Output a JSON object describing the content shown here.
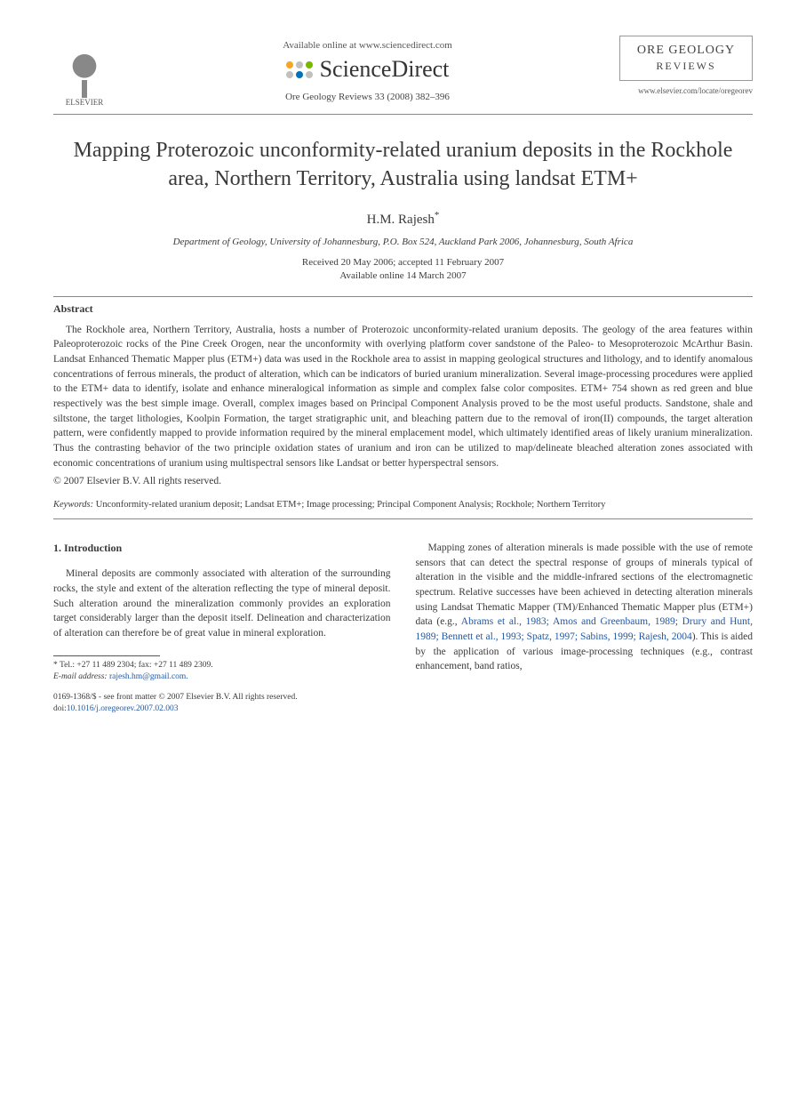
{
  "header": {
    "publisher_name": "ELSEVIER",
    "available_online": "Available online at www.sciencedirect.com",
    "sd_brand": "ScienceDirect",
    "sd_dot_colors": [
      "#f5a623",
      "#c0c0c0",
      "#7ab800",
      "#c0c0c0",
      "#0072bc",
      "#c0c0c0"
    ],
    "journal_ref": "Ore Geology Reviews 33 (2008) 382–396",
    "journal_box_line1": "ORE GEOLOGY",
    "journal_box_line2": "REVIEWS",
    "journal_url": "www.elsevier.com/locate/oregeorev"
  },
  "article": {
    "title": "Mapping Proterozoic unconformity-related uranium deposits in the Rockhole area, Northern Territory, Australia using landsat ETM+",
    "author": "H.M. Rajesh",
    "author_marker": "*",
    "affiliation": "Department of Geology, University of Johannesburg, P.O. Box 524, Auckland Park 2006, Johannesburg, South Africa",
    "dates_line1": "Received 20 May 2006; accepted 11 February 2007",
    "dates_line2": "Available online 14 March 2007"
  },
  "abstract": {
    "heading": "Abstract",
    "body": "The Rockhole area, Northern Territory, Australia, hosts a number of Proterozoic unconformity-related uranium deposits. The geology of the area features within Paleoproterozoic rocks of the Pine Creek Orogen, near the unconformity with overlying platform cover sandstone of the Paleo- to Mesoproterozoic McArthur Basin. Landsat Enhanced Thematic Mapper plus (ETM+) data was used in the Rockhole area to assist in mapping geological structures and lithology, and to identify anomalous concentrations of ferrous minerals, the product of alteration, which can be indicators of buried uranium mineralization. Several image-processing procedures were applied to the ETM+ data to identify, isolate and enhance mineralogical information as simple and complex false color composites. ETM+ 754 shown as red green and blue respectively was the best simple image. Overall, complex images based on Principal Component Analysis proved to be the most useful products. Sandstone, shale and siltstone, the target lithologies, Koolpin Formation, the target stratigraphic unit, and bleaching pattern due to the removal of iron(II) compounds, the target alteration pattern, were confidently mapped to provide information required by the mineral emplacement model, which ultimately identified areas of likely uranium mineralization. Thus the contrasting behavior of the two principle oxidation states of uranium and iron can be utilized to map/delineate bleached alteration zones associated with economic concentrations of uranium using multispectral sensors like Landsat or better hyperspectral sensors.",
    "copyright": "© 2007 Elsevier B.V. All rights reserved."
  },
  "keywords": {
    "label": "Keywords:",
    "list": "Unconformity-related uranium deposit; Landsat ETM+; Image processing; Principal Component Analysis; Rockhole; Northern Territory"
  },
  "intro": {
    "heading": "1. Introduction",
    "col1": "Mineral deposits are commonly associated with alteration of the surrounding rocks, the style and extent of the alteration reflecting the type of mineral deposit. Such alteration around the mineralization commonly provides an exploration target considerably larger than the deposit itself. Delineation and characterization of alteration can therefore be of great value in mineral exploration.",
    "col2_pre": "Mapping zones of alteration minerals is made possible with the use of remote sensors that can detect the spectral response of groups of minerals typical of alteration in the visible and the middle-infrared sections of the electromagnetic spectrum. Relative successes have been achieved in detecting alteration minerals using Landsat Thematic Mapper (TM)/Enhanced Thematic Mapper plus (ETM+) data (e.g., ",
    "refs": "Abrams et al., 1983; Amos and Greenbaum, 1989; Drury and Hunt, 1989; Bennett et al., 1993; Spatz, 1997; Sabins, 1999; Rajesh, 2004",
    "col2_post": "). This is aided by the application of various image-processing techniques (e.g., contrast enhancement, band ratios,"
  },
  "footnote": {
    "marker": "*",
    "tel_label": "Tel.:",
    "tel": "+27 11 489 2304;",
    "fax_label": "fax:",
    "fax": "+27 11 489 2309.",
    "email_label": "E-mail address:",
    "email": "rajesh.hm@gmail.com."
  },
  "bottom": {
    "issn_line": "0169-1368/$ - see front matter © 2007 Elsevier B.V. All rights reserved.",
    "doi_label": "doi:",
    "doi": "10.1016/j.oregeorev.2007.02.003"
  },
  "colors": {
    "text": "#3a3a3a",
    "link": "#2258a4",
    "rule": "#888888"
  }
}
